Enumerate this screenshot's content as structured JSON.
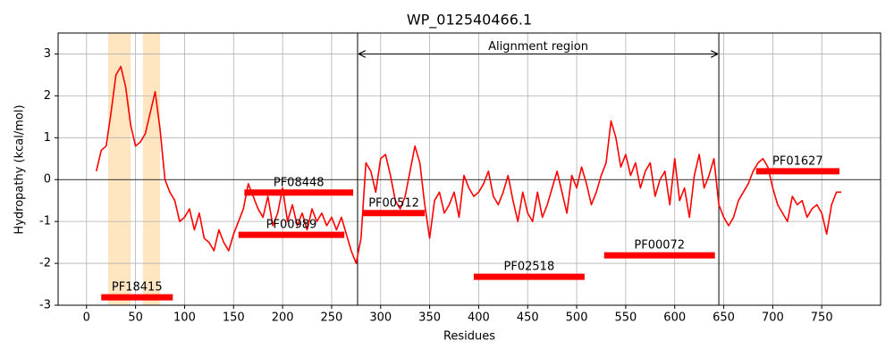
{
  "chart_data": {
    "type": "line",
    "title": "WP_012540466.1",
    "xlabel": "Residues",
    "ylabel": "Hydropathy (kcal/mol)",
    "x": [
      10,
      15,
      20,
      25,
      30,
      35,
      40,
      45,
      50,
      55,
      60,
      65,
      70,
      75,
      80,
      85,
      90,
      95,
      100,
      105,
      110,
      115,
      120,
      125,
      130,
      135,
      140,
      145,
      150,
      155,
      160,
      165,
      170,
      175,
      180,
      185,
      190,
      195,
      200,
      205,
      210,
      215,
      220,
      225,
      230,
      235,
      240,
      245,
      250,
      255,
      260,
      265,
      270,
      275,
      280,
      285,
      290,
      295,
      300,
      305,
      310,
      315,
      320,
      325,
      330,
      335,
      340,
      345,
      350,
      355,
      360,
      365,
      370,
      375,
      380,
      385,
      390,
      395,
      400,
      405,
      410,
      415,
      420,
      425,
      430,
      435,
      440,
      445,
      450,
      455,
      460,
      465,
      470,
      475,
      480,
      485,
      490,
      495,
      500,
      505,
      510,
      515,
      520,
      525,
      530,
      535,
      540,
      545,
      550,
      555,
      560,
      565,
      570,
      575,
      580,
      585,
      590,
      595,
      600,
      605,
      610,
      615,
      620,
      625,
      630,
      635,
      640,
      645,
      650,
      655,
      660,
      665,
      670,
      675,
      680,
      685,
      690,
      695,
      700,
      705,
      710,
      715,
      720,
      725,
      730,
      735,
      740,
      745,
      750,
      755,
      760,
      765,
      770
    ],
    "series": [
      {
        "color": "#ff0000",
        "values": [
          0.2,
          0.7,
          0.8,
          1.6,
          2.5,
          2.7,
          2.2,
          1.3,
          0.8,
          0.9,
          1.1,
          1.6,
          2.1,
          1.2,
          0.0,
          -0.3,
          -0.5,
          -1.0,
          -0.9,
          -0.7,
          -1.2,
          -0.8,
          -1.4,
          -1.5,
          -1.7,
          -1.2,
          -1.5,
          -1.7,
          -1.3,
          -1.0,
          -0.7,
          -0.1,
          -0.4,
          -0.7,
          -0.9,
          -0.4,
          -1.1,
          -0.8,
          -0.2,
          -1.0,
          -0.6,
          -1.1,
          -0.8,
          -1.2,
          -0.7,
          -1.0,
          -0.8,
          -1.1,
          -0.9,
          -1.2,
          -0.9,
          -1.3,
          -1.7,
          -2.0,
          -1.4,
          0.4,
          0.2,
          -0.3,
          0.5,
          0.6,
          0.1,
          -0.5,
          -0.7,
          -0.4,
          0.2,
          0.8,
          0.4,
          -0.6,
          -1.4,
          -0.5,
          -0.3,
          -0.8,
          -0.6,
          -0.3,
          -0.9,
          0.1,
          -0.2,
          -0.4,
          -0.3,
          -0.1,
          0.2,
          -0.4,
          -0.6,
          -0.3,
          0.1,
          -0.5,
          -1.0,
          -0.3,
          -0.8,
          -1.0,
          -0.3,
          -0.9,
          -0.6,
          -0.2,
          0.2,
          -0.3,
          -0.8,
          0.1,
          -0.2,
          0.3,
          -0.1,
          -0.6,
          -0.3,
          0.1,
          0.4,
          1.4,
          1.0,
          0.3,
          0.6,
          0.1,
          0.4,
          -0.2,
          0.2,
          0.4,
          -0.4,
          0.0,
          0.2,
          -0.6,
          0.5,
          -0.5,
          -0.2,
          -0.9,
          0.1,
          0.6,
          -0.2,
          0.1,
          0.5,
          -0.6,
          -0.9,
          -1.1,
          -0.9,
          -0.5,
          -0.3,
          -0.1,
          0.2,
          0.4,
          0.5,
          0.3,
          -0.2,
          -0.6,
          -0.8,
          -1.0,
          -0.4,
          -0.6,
          -0.5,
          -0.9,
          -0.7,
          -0.6,
          -0.8,
          -1.3,
          -0.6,
          -0.3,
          -0.3
        ]
      }
    ],
    "xlim": [
      -29,
      810
    ],
    "ylim": [
      -3,
      3.5
    ],
    "xticks": [
      0,
      50,
      100,
      150,
      200,
      250,
      300,
      350,
      400,
      450,
      500,
      550,
      600,
      650,
      700,
      750
    ],
    "yticks": [
      -3,
      -2,
      -1,
      0,
      1,
      2,
      3
    ],
    "grid": true,
    "hline": 0,
    "spans": [
      {
        "start": 22,
        "end": 45,
        "color": "#ffe5c0"
      },
      {
        "start": 57.5,
        "end": 75,
        "color": "#ffe5c0"
      }
    ],
    "vlines": [
      276.5,
      645
    ],
    "annotation": {
      "text": "Alignment region",
      "start": 276.5,
      "end": 645,
      "y": 3
    },
    "domain_color": "#ff0000",
    "domains": [
      {
        "name": "PF18415",
        "start": 15,
        "end": 88,
        "y": -2.81
      },
      {
        "name": "PF08448",
        "start": 161,
        "end": 272,
        "y": -0.31
      },
      {
        "name": "PF00989",
        "start": 155,
        "end": 263,
        "y": -1.32
      },
      {
        "name": "PF00512",
        "start": 282,
        "end": 345,
        "y": -0.8
      },
      {
        "name": "PF02518",
        "start": 395,
        "end": 508,
        "y": -2.32
      },
      {
        "name": "PF00072",
        "start": 528,
        "end": 641,
        "y": -1.81
      },
      {
        "name": "PF01627",
        "start": 683,
        "end": 768,
        "y": 0.2
      }
    ]
  }
}
